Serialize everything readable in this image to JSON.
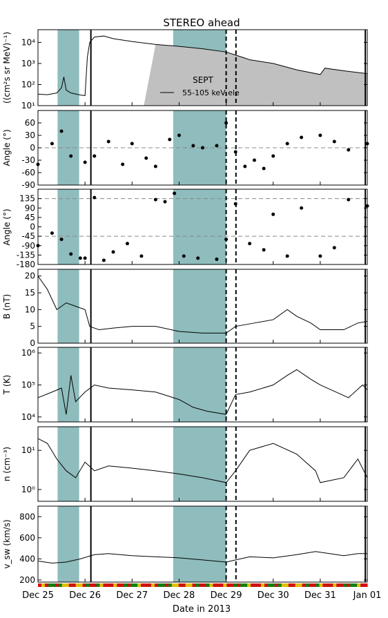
{
  "figure": {
    "title": "STEREO ahead",
    "xlabel": "Date in 2013",
    "x_tick_labels": [
      "Dec 25",
      "Dec 26",
      "Dec 27",
      "Dec 28",
      "Dec 29",
      "Dec 30",
      "Dec 31",
      "Jan 01"
    ]
  },
  "chart_data": {
    "type": "line",
    "x_axis": {
      "unit": "days",
      "start": "2013-12-25",
      "end": "2014-01-01",
      "tick_labels": [
        "Dec 25",
        "Dec 26",
        "Dec 27",
        "Dec 28",
        "Dec 29",
        "Dec 30",
        "Dec 31",
        "Jan 01"
      ]
    },
    "shaded_intervals": [
      {
        "start": "Dec 25 10:00",
        "end": "Dec 25 21:00",
        "color": "#8fbcbc"
      },
      {
        "start": "Dec 27 21:00",
        "end": "Dec 29 00:00",
        "color": "#8fbcbc"
      }
    ],
    "vertical_markers": [
      {
        "at": "Dec 26 03:00",
        "style": "solid"
      },
      {
        "at": "Dec 29 00:00",
        "style": "dashed"
      },
      {
        "at": "Dec 29 05:00",
        "style": "dashed"
      },
      {
        "at": "Dec 31 23:00",
        "style": "solid"
      }
    ],
    "panels": [
      {
        "id": "flux",
        "ylabel": "((cm²s sr MeV)⁻¹)",
        "scale": "log",
        "ylim": [
          10,
          40000
        ],
        "tick_labels": [
          "10¹",
          "10²",
          "10³",
          "10⁴"
        ],
        "legend": {
          "title": "SEPT",
          "entries": [
            "55-105 keV ele"
          ],
          "position": "center"
        },
        "series": [
          {
            "name": "55-105 keV ele",
            "x": [
              0,
              0.2,
              0.4,
              0.5,
              0.55,
              0.6,
              0.7,
              0.9,
              1.0,
              1.05,
              1.1,
              1.2,
              1.4,
              1.6,
              2.0,
              2.5,
              3.0,
              3.5,
              4.0,
              4.2,
              4.4,
              4.5,
              5.0,
              5.5,
              6.0,
              6.1,
              6.5,
              7.0
            ],
            "y": [
              35,
              33,
              40,
              70,
              230,
              55,
              40,
              32,
              30,
              2000,
              10000,
              18000,
              20000,
              15000,
              11000,
              8000,
              6500,
              5000,
              3500,
              2500,
              1800,
              1500,
              1000,
              500,
              300,
              600,
              450,
              330
            ]
          }
        ]
      },
      {
        "id": "angle_theta",
        "ylabel": "Angle (°)",
        "ylim": [
          -90,
          90
        ],
        "tick_labels": [
          "-90",
          "-60",
          "-30",
          "0",
          "30",
          "60"
        ],
        "reference_lines": [
          0
        ],
        "series": [
          {
            "name": "",
            "x": [
              0,
              0.3,
              0.5,
              0.7,
              1.0,
              1.2,
              1.5,
              1.8,
              2.0,
              2.3,
              2.5,
              2.8,
              3.0,
              3.3,
              3.5,
              3.8,
              4.0,
              4.2,
              4.4,
              4.6,
              4.8,
              5.0,
              5.3,
              5.6,
              6.0,
              6.3,
              6.6,
              7.0
            ],
            "y": [
              -40,
              10,
              40,
              -20,
              -35,
              -20,
              15,
              -40,
              10,
              -25,
              -45,
              20,
              30,
              5,
              0,
              5,
              60,
              -10,
              -45,
              -30,
              -50,
              -20,
              10,
              25,
              30,
              15,
              -5,
              10
            ]
          }
        ]
      },
      {
        "id": "angle_phi",
        "ylabel": "Angle (°)",
        "ylim": [
          -180,
          180
        ],
        "tick_labels": [
          "-180",
          "-135",
          "-90",
          "-45",
          "0",
          "45",
          "90",
          "135"
        ],
        "reference_lines": [
          -45,
          135
        ],
        "series": [
          {
            "name": "",
            "x": [
              0,
              0.3,
              0.5,
              0.7,
              0.9,
              1.0,
              1.2,
              1.4,
              1.6,
              1.9,
              2.2,
              2.5,
              2.7,
              2.9,
              3.1,
              3.4,
              3.8,
              4.0,
              4.2,
              4.5,
              4.8,
              5.0,
              5.3,
              5.6,
              6.0,
              6.3,
              6.6,
              7.0
            ],
            "y": [
              -90,
              -30,
              -60,
              -130,
              -150,
              -150,
              140,
              -160,
              -120,
              -80,
              -140,
              130,
              120,
              160,
              -140,
              -150,
              -155,
              -60,
              110,
              -80,
              -110,
              60,
              -140,
              90,
              -140,
              -100,
              130,
              100
            ]
          }
        ]
      },
      {
        "id": "B",
        "ylabel": "B (nT)",
        "ylim": [
          0,
          22
        ],
        "tick_labels": [
          "0",
          "5",
          "10",
          "15",
          "20"
        ],
        "series": [
          {
            "name": "",
            "x": [
              0,
              0.2,
              0.4,
              0.6,
              0.8,
              1.0,
              1.1,
              1.3,
              1.6,
              2.0,
              2.5,
              3.0,
              3.5,
              4.0,
              4.2,
              4.6,
              5.0,
              5.3,
              5.5,
              5.8,
              6.0,
              6.2,
              6.5,
              6.8,
              7.0
            ],
            "y": [
              20,
              16,
              10,
              12,
              11,
              10,
              5,
              4,
              4.5,
              5,
              5,
              3.5,
              3,
              3,
              5,
              6,
              7,
              10,
              8,
              6,
              4,
              4,
              4,
              6,
              6.5
            ]
          }
        ]
      },
      {
        "id": "T",
        "ylabel": "T (K)",
        "scale": "log",
        "ylim": [
          7000,
          1500000
        ],
        "tick_labels": [
          "10⁴",
          "10⁵",
          "10⁶"
        ],
        "series": [
          {
            "name": "",
            "x": [
              0,
              0.3,
              0.5,
              0.6,
              0.7,
              0.8,
              1.0,
              1.2,
              1.5,
              2.0,
              2.5,
              3.0,
              3.3,
              3.6,
              4.0,
              4.2,
              4.5,
              5.0,
              5.3,
              5.5,
              5.8,
              6.0,
              6.6,
              6.9,
              7.0
            ],
            "y": [
              40000,
              60000,
              80000,
              12000,
              200000,
              30000,
              60000,
              100000,
              80000,
              70000,
              60000,
              35000,
              20000,
              15000,
              12000,
              50000,
              60000,
              100000,
              200000,
              300000,
              150000,
              100000,
              40000,
              100000,
              70000
            ]
          }
        ]
      },
      {
        "id": "n",
        "ylabel": "n (cm⁻³)",
        "scale": "log",
        "ylim": [
          0.5,
          40
        ],
        "tick_labels": [
          "10⁰",
          "10¹"
        ],
        "series": [
          {
            "name": "",
            "x": [
              0,
              0.2,
              0.4,
              0.6,
              0.8,
              1.0,
              1.2,
              1.5,
              2.0,
              2.5,
              3.0,
              3.5,
              4.0,
              4.2,
              4.5,
              5.0,
              5.5,
              5.9,
              6.0,
              6.5,
              6.8,
              7.0
            ],
            "y": [
              20,
              15,
              6,
              3,
              2,
              5,
              3,
              4,
              3.5,
              3,
              2.5,
              2,
              1.5,
              3,
              10,
              15,
              8,
              3,
              1.5,
              2,
              6,
              2
            ]
          }
        ]
      },
      {
        "id": "v",
        "ylabel": "v_sw (km/s)",
        "ylim": [
          180,
          900
        ],
        "tick_labels": [
          "200",
          "400",
          "600",
          "800"
        ],
        "series": [
          {
            "name": "",
            "x": [
              0,
              0.3,
              0.6,
              0.9,
              1.2,
              1.5,
              2.0,
              2.5,
              3.0,
              3.5,
              4.0,
              4.2,
              4.5,
              5.0,
              5.5,
              5.9,
              6.5,
              6.8,
              7.0
            ],
            "y": [
              380,
              360,
              370,
              400,
              440,
              450,
              430,
              420,
              410,
              390,
              370,
              390,
              420,
              410,
              440,
              470,
              430,
              450,
              450
            ]
          }
        ]
      }
    ]
  }
}
